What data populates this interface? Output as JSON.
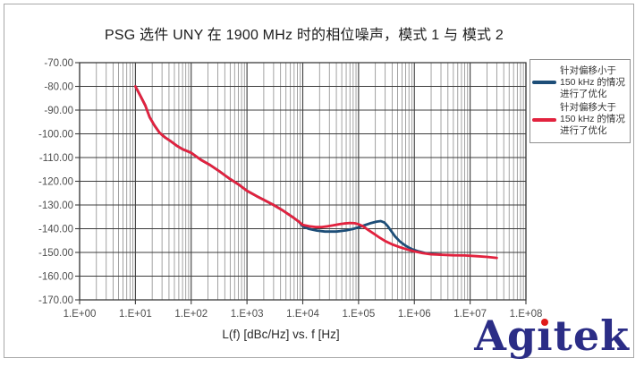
{
  "figure": {
    "title": "PSG 选件 UNY 在 1900 MHz 时的相位噪声，模式 1 与 模式 2"
  },
  "colors": {
    "series_blue": "#1d4e78",
    "series_red": "#e2223e",
    "grid_major": "#3c3c3c",
    "grid_minor": "#8c8c8c",
    "axis_text": "#4d4d4d",
    "frame_border": "#a8a8a8",
    "logo_navy": "#2b2d86",
    "logo_dot_red": "#e01b1b"
  },
  "legend": {
    "items": [
      {
        "id": "mode1",
        "color": "#1d4e78",
        "label_lines": [
          "针对偏移小于",
          "150 kHz 的情况",
          "进行了优化"
        ]
      },
      {
        "id": "mode2",
        "color": "#e2223e",
        "label_lines": [
          "针对偏移大于",
          "150 kHz 的情况",
          "进行了优化"
        ]
      }
    ]
  },
  "logo": {
    "text": "Agitek"
  },
  "chart_data": {
    "type": "line",
    "title": "PSG 选件 UNY 在 1900 MHz 时的相位噪声，模式 1 与 模式 2",
    "xlabel": "L(f) [dBc/Hz] vs. f [Hz]",
    "ylabel": "",
    "x_scale": "log",
    "x_range": [
      1,
      100000000
    ],
    "y_range": [
      -170,
      -70
    ],
    "grid": "on",
    "legend_position": "right",
    "x_tick_labels": [
      "1.E+00",
      "1.E+01",
      "1.E+02",
      "1.E+03",
      "1.E+04",
      "1.E+05",
      "1.E+06",
      "1.E+07",
      "1.E+08"
    ],
    "y_ticks": [
      -70,
      -80,
      -90,
      -100,
      -110,
      -120,
      -130,
      -140,
      -150,
      -160,
      -170
    ],
    "y_tick_labels": [
      "-70.00",
      "-80.00",
      "-90.00",
      "-100.00",
      "-110.00",
      "-120.00",
      "-130.00",
      "-140.00",
      "-150.00",
      "-160.00",
      "-170.00"
    ],
    "series": [
      {
        "id": "mode1",
        "name": "针对偏移小于 150 kHz 的情况进行了优化",
        "color": "#1d4e78",
        "points": [
          [
            10,
            -80
          ],
          [
            12,
            -83.5
          ],
          [
            15,
            -88
          ],
          [
            18,
            -93
          ],
          [
            22,
            -96.5
          ],
          [
            27,
            -99.5
          ],
          [
            34,
            -101.5
          ],
          [
            42,
            -103
          ],
          [
            55,
            -105
          ],
          [
            70,
            -106.5
          ],
          [
            100,
            -108
          ],
          [
            150,
            -111
          ],
          [
            220,
            -113.2
          ],
          [
            320,
            -115.8
          ],
          [
            480,
            -118.8
          ],
          [
            700,
            -121.3
          ],
          [
            1000,
            -124
          ],
          [
            1500,
            -126.3
          ],
          [
            2000,
            -127.8
          ],
          [
            3000,
            -130
          ],
          [
            4500,
            -132.5
          ],
          [
            6500,
            -135
          ],
          [
            8500,
            -137
          ],
          [
            10000,
            -139
          ],
          [
            13000,
            -140.1
          ],
          [
            18000,
            -140.8
          ],
          [
            25000,
            -141.2
          ],
          [
            40000,
            -141.2
          ],
          [
            60000,
            -140.7
          ],
          [
            80000,
            -140.1
          ],
          [
            100000,
            -139.4
          ],
          [
            130000,
            -138.5
          ],
          [
            170000,
            -137.6
          ],
          [
            210000,
            -137
          ],
          [
            250000,
            -136.8
          ],
          [
            290000,
            -137.4
          ],
          [
            330000,
            -138.8
          ],
          [
            380000,
            -140.8
          ],
          [
            450000,
            -143.2
          ],
          [
            550000,
            -145.4
          ],
          [
            700000,
            -147.2
          ],
          [
            900000,
            -148.6
          ],
          [
            1200000,
            -149.6
          ],
          [
            1600000,
            -150.3
          ],
          [
            2200000,
            -150.7
          ],
          [
            3000000,
            -150.9
          ]
        ]
      },
      {
        "id": "mode2",
        "name": "针对偏移大于 150 kHz 的情况进行了优化",
        "color": "#e2223e",
        "points": [
          [
            10,
            -80
          ],
          [
            12,
            -83.5
          ],
          [
            15,
            -88
          ],
          [
            18,
            -93
          ],
          [
            22,
            -96.5
          ],
          [
            27,
            -99.5
          ],
          [
            34,
            -101.5
          ],
          [
            42,
            -103
          ],
          [
            55,
            -105
          ],
          [
            70,
            -106.5
          ],
          [
            100,
            -108
          ],
          [
            150,
            -111
          ],
          [
            220,
            -113.2
          ],
          [
            320,
            -115.8
          ],
          [
            480,
            -118.8
          ],
          [
            700,
            -121.3
          ],
          [
            1000,
            -124
          ],
          [
            1500,
            -126.3
          ],
          [
            2000,
            -127.8
          ],
          [
            3000,
            -130
          ],
          [
            4500,
            -132.5
          ],
          [
            6500,
            -135
          ],
          [
            8500,
            -137
          ],
          [
            10000,
            -138.4
          ],
          [
            13000,
            -139
          ],
          [
            17000,
            -139.3
          ],
          [
            22000,
            -139.3
          ],
          [
            28000,
            -139
          ],
          [
            35000,
            -138.6
          ],
          [
            45000,
            -138.1
          ],
          [
            55000,
            -137.8
          ],
          [
            70000,
            -137.6
          ],
          [
            85000,
            -137.7
          ],
          [
            100000,
            -138.1
          ],
          [
            120000,
            -139
          ],
          [
            150000,
            -140.6
          ],
          [
            190000,
            -142.2
          ],
          [
            240000,
            -143.8
          ],
          [
            300000,
            -145.2
          ],
          [
            400000,
            -146.6
          ],
          [
            550000,
            -147.8
          ],
          [
            750000,
            -148.8
          ],
          [
            1000000,
            -149.6
          ],
          [
            1400000,
            -150.3
          ],
          [
            2000000,
            -150.8
          ],
          [
            3000000,
            -151
          ],
          [
            5000000,
            -151.2
          ],
          [
            8000000,
            -151.3
          ],
          [
            13000000,
            -151.6
          ],
          [
            20000000,
            -151.9
          ],
          [
            30000000,
            -152.3
          ]
        ]
      }
    ]
  }
}
